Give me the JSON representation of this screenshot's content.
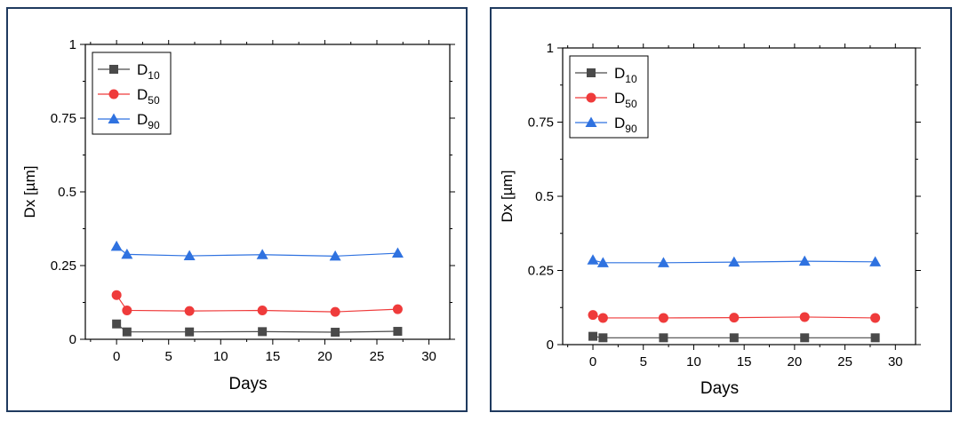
{
  "colors": {
    "d10": "#4a4a4a",
    "d50": "#ef3b3b",
    "d90": "#2f72e0",
    "frame": "#1f3a5f"
  },
  "chart_data": [
    {
      "type": "line",
      "title": "",
      "xlabel": "Days",
      "ylabel": "Dx [µm]",
      "xlim": [
        -3,
        32
      ],
      "ylim": [
        0,
        1
      ],
      "xticks": [
        "0",
        "5",
        "10",
        "15",
        "20",
        "25",
        "30"
      ],
      "yticks": [
        "0",
        "0.25",
        "0.5",
        "0.75",
        "1"
      ],
      "legend_position": "top-left",
      "series": [
        {
          "name": "D10",
          "main": "D",
          "sub": "10",
          "marker": "square",
          "color": "#4a4a4a",
          "x": [
            0,
            1,
            7,
            14,
            21,
            27
          ],
          "values": [
            0.052,
            0.025,
            0.025,
            0.026,
            0.024,
            0.027
          ]
        },
        {
          "name": "D50",
          "main": "D",
          "sub": "50",
          "marker": "circle",
          "color": "#ef3b3b",
          "x": [
            0,
            1,
            7,
            14,
            21,
            27
          ],
          "values": [
            0.15,
            0.098,
            0.096,
            0.098,
            0.093,
            0.102
          ]
        },
        {
          "name": "D90",
          "main": "D",
          "sub": "90",
          "marker": "triangle",
          "color": "#2f72e0",
          "x": [
            0,
            1,
            7,
            14,
            21,
            27
          ],
          "values": [
            0.315,
            0.288,
            0.283,
            0.287,
            0.282,
            0.292
          ]
        }
      ]
    },
    {
      "type": "line",
      "title": "",
      "xlabel": "Days",
      "ylabel": "Dx [µm]",
      "xlim": [
        -3,
        32
      ],
      "ylim": [
        0,
        1
      ],
      "xticks": [
        "0",
        "5",
        "10",
        "15",
        "20",
        "25",
        "30"
      ],
      "yticks": [
        "0",
        "0.25",
        "0.5",
        "0.75",
        "1"
      ],
      "legend_position": "top-left",
      "series": [
        {
          "name": "D10",
          "main": "D",
          "sub": "10",
          "marker": "square",
          "color": "#4a4a4a",
          "x": [
            0,
            1,
            7,
            14,
            21,
            28
          ],
          "values": [
            0.028,
            0.023,
            0.023,
            0.023,
            0.023,
            0.023
          ]
        },
        {
          "name": "D50",
          "main": "D",
          "sub": "50",
          "marker": "circle",
          "color": "#ef3b3b",
          "x": [
            0,
            1,
            7,
            14,
            21,
            28
          ],
          "values": [
            0.1,
            0.09,
            0.09,
            0.091,
            0.093,
            0.09
          ]
        },
        {
          "name": "D90",
          "main": "D",
          "sub": "90",
          "marker": "triangle",
          "color": "#2f72e0",
          "x": [
            0,
            1,
            7,
            14,
            21,
            28
          ],
          "values": [
            0.285,
            0.276,
            0.276,
            0.278,
            0.281,
            0.279
          ]
        }
      ]
    }
  ]
}
